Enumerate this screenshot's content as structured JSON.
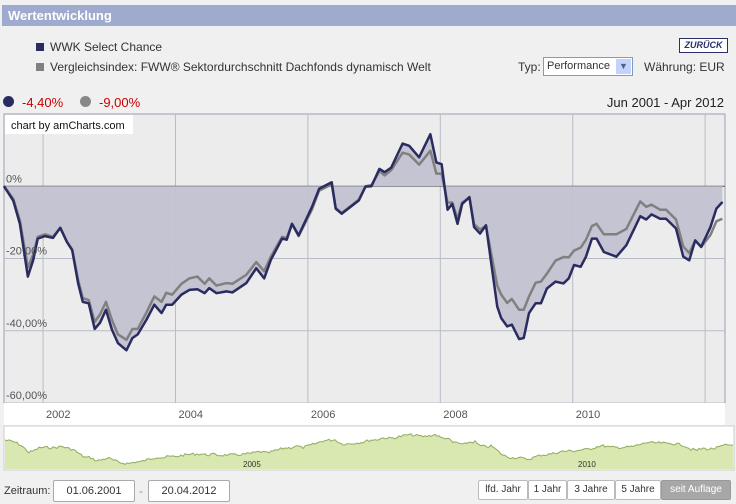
{
  "header": {
    "title": "Wertentwicklung"
  },
  "legend": {
    "fund": "WWK Select Chance",
    "benchmark": "Vergleichsindex: FWW® Sektordurchschnitt Dachfonds dynamisch Welt"
  },
  "back_button": "ZURÜCK",
  "type_label": "Typ:",
  "type_select": "Performance",
  "currency": "Währung: EUR",
  "summary": {
    "fund_pct": "-4,40%",
    "benchmark_pct": "-9,00%",
    "range": "Jun 2001 - Apr 2012"
  },
  "credit": "chart by amCharts.com",
  "colors": {
    "fund": "#2a2c60",
    "benchmark": "#808080",
    "fill": "#c2c2d2",
    "negative": "#cc0000",
    "navigator": "#d8e8b0"
  },
  "navigator": {
    "labels": [
      "2005",
      "2010"
    ]
  },
  "controls": {
    "zeitraum_label": "Zeitraum:",
    "from": "01.06.2001",
    "to": "20.04.2012",
    "buttons": [
      "lfd. Jahr",
      "1 Jahr",
      "3 Jahre",
      "5 Jahre",
      "seit Auflage"
    ],
    "active": "seit Auflage"
  },
  "chart_data": {
    "type": "line",
    "xlabel": "",
    "ylabel": "",
    "xlim": [
      2001.41,
      2012.3
    ],
    "ylim": [
      -60,
      20
    ],
    "y_ticks": [
      {
        "v": 0,
        "label": "0%"
      },
      {
        "v": -20,
        "label": "-20,00%"
      },
      {
        "v": -40,
        "label": "-40,00%"
      },
      {
        "v": -60,
        "label": "-60,00%"
      }
    ],
    "x_ticks": [
      {
        "v": 2002,
        "label": "2002"
      },
      {
        "v": 2004,
        "label": "2004"
      },
      {
        "v": 2006,
        "label": "2006"
      },
      {
        "v": 2008,
        "label": "2008"
      },
      {
        "v": 2010,
        "label": "2010"
      },
      {
        "v": 2012,
        "label": ""
      }
    ],
    "x": [
      2001.41,
      2001.55,
      2001.65,
      2001.77,
      2001.85,
      2001.92,
      2002.03,
      2002.15,
      2002.26,
      2002.36,
      2002.44,
      2002.53,
      2002.6,
      2002.69,
      2002.78,
      2002.86,
      2002.95,
      2003.04,
      2003.13,
      2003.26,
      2003.35,
      2003.43,
      2003.56,
      2003.68,
      2003.79,
      2003.86,
      2003.95,
      2004.09,
      2004.21,
      2004.33,
      2004.44,
      2004.51,
      2004.62,
      2004.77,
      2004.86,
      2005.07,
      2005.22,
      2005.34,
      2005.44,
      2005.61,
      2005.68,
      2005.76,
      2005.86,
      2006.06,
      2006.17,
      2006.36,
      2006.42,
      2006.51,
      2006.77,
      2006.87,
      2006.96,
      2007.08,
      2007.16,
      2007.26,
      2007.43,
      2007.53,
      2007.68,
      2007.85,
      2007.94,
      2008.02,
      2008.11,
      2008.18,
      2008.26,
      2008.33,
      2008.44,
      2008.51,
      2008.6,
      2008.69,
      2008.86,
      2008.92,
      2009.01,
      2009.08,
      2009.19,
      2009.26,
      2009.34,
      2009.44,
      2009.52,
      2009.61,
      2009.74,
      2009.86,
      2009.94,
      2010.02,
      2010.12,
      2010.2,
      2010.29,
      2010.36,
      2010.47,
      2010.66,
      2010.81,
      2011.02,
      2011.11,
      2011.19,
      2011.32,
      2011.41,
      2011.56,
      2011.67,
      2011.76,
      2011.85,
      2011.94,
      2012.08,
      2012.17,
      2012.26
    ],
    "series": [
      {
        "name": "WWK Select Chance",
        "values": [
          0,
          -4,
          -10.4,
          -25,
          -20.5,
          -14.5,
          -13.8,
          -14.3,
          -11.5,
          -15.4,
          -17.7,
          -26.9,
          -32,
          -32.4,
          -39.5,
          -37.8,
          -34.2,
          -39.7,
          -43.4,
          -45.4,
          -42,
          -41,
          -37,
          -32.8,
          -35.1,
          -32.8,
          -32.8,
          -30,
          -28.7,
          -28.5,
          -29.6,
          -28.2,
          -29.6,
          -29.1,
          -29.4,
          -26.8,
          -22.7,
          -25.5,
          -20.4,
          -14.5,
          -14.8,
          -10.4,
          -13.6,
          -5.8,
          -0.7,
          1.1,
          -6.2,
          -7.6,
          -3.9,
          -0.1,
          0,
          4.8,
          3.9,
          5.2,
          11.8,
          11.2,
          8,
          14.4,
          6.6,
          6.1,
          -6.5,
          -4.9,
          -10.4,
          -4.9,
          -3,
          -11.3,
          -13.1,
          -10.8,
          -33.3,
          -36.5,
          -38.8,
          -38.3,
          -42.3,
          -42,
          -35.1,
          -32.4,
          -32.4,
          -28.3,
          -26.4,
          -26.9,
          -25.5,
          -21.8,
          -22.3,
          -19.5,
          -14.5,
          -14.5,
          -18.2,
          -19.5,
          -16.3,
          -8.3,
          -9.2,
          -7.8,
          -9,
          -9,
          -11.7,
          -19.5,
          -20.5,
          -15,
          -16.8,
          -11.3,
          -6.2,
          -4.4
        ]
      },
      {
        "name": "Vergleichsindex",
        "values": [
          0,
          -3.5,
          -9.5,
          -22.5,
          -19,
          -14,
          -13.3,
          -14,
          -11.5,
          -15.4,
          -17.5,
          -26,
          -31,
          -31.5,
          -37.5,
          -35.5,
          -32,
          -37,
          -41,
          -42.5,
          -39.5,
          -39.5,
          -35,
          -30.5,
          -32,
          -29.5,
          -30,
          -27,
          -25.5,
          -25,
          -27,
          -25.5,
          -27.5,
          -26.8,
          -27,
          -24.5,
          -21,
          -23.5,
          -19.5,
          -14,
          -14.3,
          -10.4,
          -13.8,
          -6.5,
          -1.2,
          0.5,
          -6,
          -7.4,
          -3.7,
          0,
          0.3,
          4.2,
          3,
          4.5,
          9.3,
          8.8,
          6,
          9.8,
          3.5,
          3.5,
          -4.5,
          -4.5,
          -9,
          -4.5,
          -3.2,
          -10.5,
          -12,
          -11,
          -27.5,
          -30,
          -32.3,
          -31.2,
          -34.2,
          -34.2,
          -30.5,
          -26.7,
          -26.4,
          -24.2,
          -20.6,
          -19.6,
          -19.7,
          -17.8,
          -17,
          -14.8,
          -11,
          -10.4,
          -13.3,
          -13.3,
          -11.8,
          -4.2,
          -5.7,
          -5.1,
          -6.5,
          -6.5,
          -9.2,
          -16.7,
          -18.5,
          -15,
          -16.8,
          -13.5,
          -9.7,
          -9
        ]
      }
    ]
  }
}
